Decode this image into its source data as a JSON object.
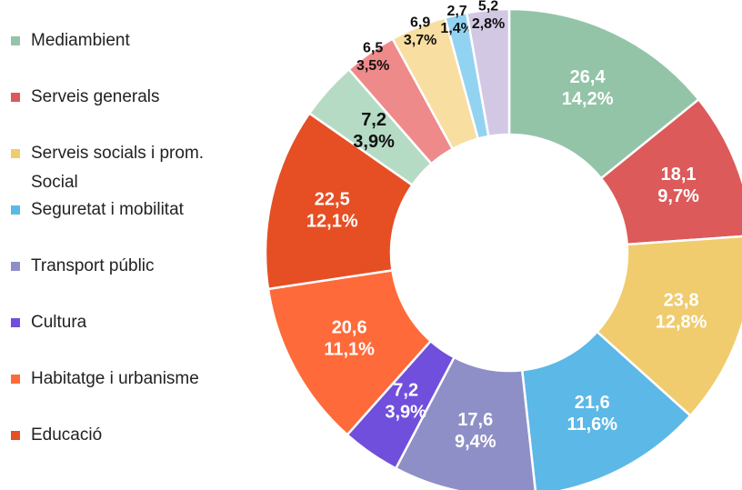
{
  "chart_data": {
    "type": "donut",
    "categories": [
      "Mediambient",
      "Serveis generals",
      "Serveis socials i prom. Social",
      "Seguretat i mobilitat",
      "Transport públic",
      "Cultura",
      "Habitatge i urbanisme",
      "Educació",
      null,
      null,
      null,
      null,
      null
    ],
    "values": [
      26.4,
      18.1,
      23.8,
      21.6,
      17.6,
      7.2,
      20.6,
      22.5,
      7.2,
      6.5,
      6.9,
      2.7,
      5.2
    ],
    "value_labels": [
      "26,4",
      "18,1",
      "23,8",
      "21,6",
      "17,6",
      "7,2",
      "20,6",
      "22,5",
      "7,2",
      "6,5",
      "6,9",
      "2,7",
      "5,2"
    ],
    "percent_values": [
      14.2,
      9.7,
      12.8,
      11.6,
      9.4,
      3.9,
      11.1,
      12.1,
      3.9,
      3.5,
      3.7,
      1.4,
      2.8
    ],
    "percent_labels": [
      "14,2%",
      "9,7%",
      "12,8%",
      "11,6%",
      "9,4%",
      "3,9%",
      "11,1%",
      "12,1%",
      "3,9%",
      "3,5%",
      "3,7%",
      "1,4%",
      "2,8%"
    ],
    "colors": [
      "#93c4a8",
      "#dc5a5a",
      "#f0cc6e",
      "#5cb8e6",
      "#8f8fc7",
      "#6f4fdc",
      "#ff6a3a",
      "#e64e24",
      "#b5dbc5",
      "#ee8a8a",
      "#f8dea0",
      "#93d3f2",
      "#d3c8e4"
    ],
    "legend": "left"
  }
}
